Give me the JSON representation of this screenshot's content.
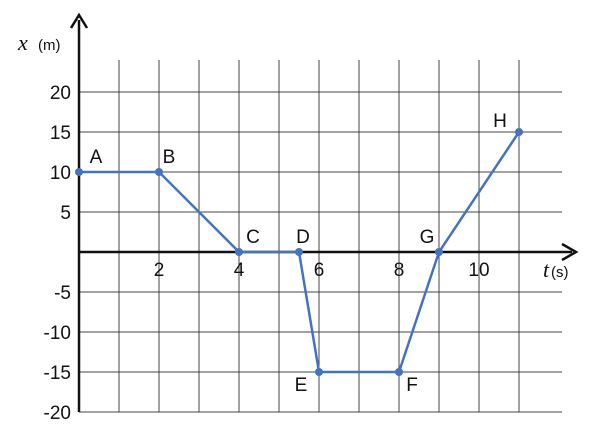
{
  "chart_data": {
    "type": "line",
    "xlabel": "t",
    "xunit": "(s)",
    "ylabel": "x",
    "yunit": "(m)",
    "xlim": [
      0,
      12
    ],
    "ylim": [
      -20,
      25
    ],
    "x_ticks": [
      2,
      4,
      6,
      8,
      10
    ],
    "y_ticks": [
      20,
      15,
      10,
      5,
      -5,
      -10,
      -15,
      -20
    ],
    "grid": true,
    "line_color": "#4472c4",
    "points": [
      {
        "label": "A",
        "x": 0,
        "y": 10
      },
      {
        "label": "B",
        "x": 2,
        "y": 10
      },
      {
        "label": "C",
        "x": 4,
        "y": 0
      },
      {
        "label": "D",
        "x": 5.5,
        "y": 0
      },
      {
        "label": "E",
        "x": 6,
        "y": -15
      },
      {
        "label": "F",
        "x": 8,
        "y": -15
      },
      {
        "label": "G",
        "x": 9,
        "y": 0
      },
      {
        "label": "H",
        "x": 11,
        "y": 15
      }
    ]
  }
}
